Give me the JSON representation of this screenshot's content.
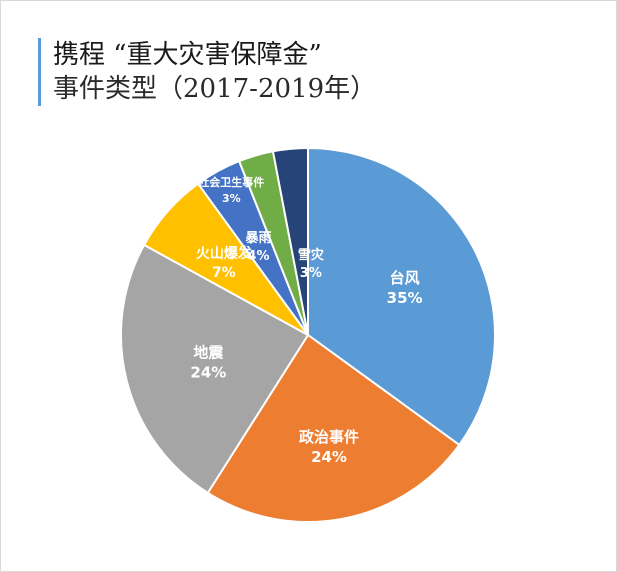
{
  "title": {
    "line1": "携程 “重大灾害保障金”",
    "line2": "事件类型（2017-2019年）"
  },
  "chart_data": {
    "type": "pie",
    "start": "12 o'clock",
    "direction": "clockwise",
    "slices": [
      {
        "name": "台风",
        "value": 35,
        "label": "35%",
        "color": "#5b9bd5"
      },
      {
        "name": "政治事件",
        "value": 24,
        "label": "24%",
        "color": "#ed7d31"
      },
      {
        "name": "地震",
        "value": 24,
        "label": "24%",
        "color": "#a5a5a5"
      },
      {
        "name": "火山爆发",
        "value": 7,
        "label": "7%",
        "color": "#ffc000"
      },
      {
        "name": "暴雨",
        "value": 4,
        "label": "4%",
        "color": "#4472c4"
      },
      {
        "name": "社会卫生事件",
        "value": 3,
        "label": "3%",
        "color": "#70ad47"
      },
      {
        "name": "雪灾",
        "value": 3,
        "label": "3%",
        "color": "#264478"
      }
    ]
  }
}
